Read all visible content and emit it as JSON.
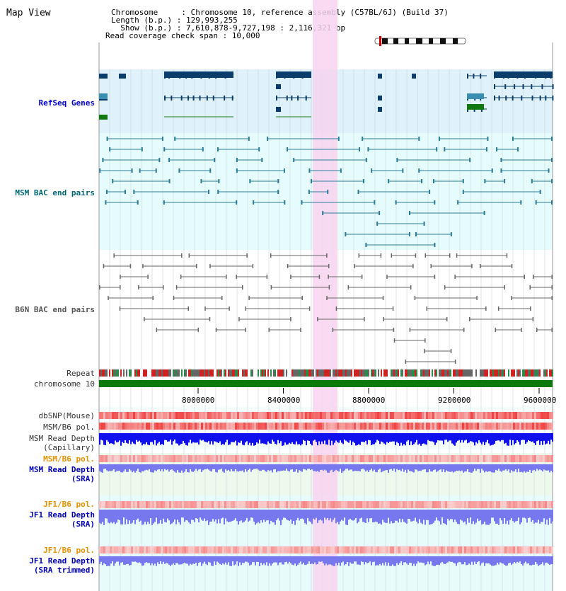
{
  "header": {
    "title": "Map View",
    "chromosome_line": "Chromosome     : Chromosome 10, reference assembly (C57BL/6J) (Build 37)",
    "length_line": "Length (b.p.) : 129,993,255",
    "show_line": "  Show (b.p.) : 7,610,878-9,727,198 : 2,116,321 bp",
    "coverage_line": "Read coverage check span : 10,000"
  },
  "tracks": {
    "refseq": "RefSeq Genes",
    "msm_bac": "MSM BAC end pairs",
    "b6n_bac": "B6N BAC end pairs",
    "repeat": "Repeat",
    "chromosome": "chromosome 10",
    "dbsnp": "dbSNP(Mouse)",
    "msm_b6_pol_1": "MSM/B6 pol.",
    "msm_depth_cap_1": "MSM Read Depth",
    "msm_depth_cap_2": "(Capillary)",
    "msm_b6_pol_2": "MSM/B6 pol.",
    "msm_depth_sra_1": "MSM Read Depth",
    "msm_depth_sra_2": "(SRA)",
    "jf1_b6_pol_1": "JF1/B6 pol.",
    "jf1_depth_sra_1": "JF1 Read Depth",
    "jf1_depth_sra_2": "(SRA)",
    "jf1_b6_pol_2": "JF1/B6 pol.",
    "jf1_depth_trim_1": "JF1 Read Depth",
    "jf1_depth_trim_2": "(SRA trimmed)"
  },
  "axis": {
    "ticks": [
      "8000000",
      "8400000",
      "8800000",
      "9200000",
      "9600000"
    ]
  },
  "colors": {
    "refseq_bg": "#dff1fa",
    "msm_bg": "#e6fbfb",
    "sra_bg": "#eef9ee",
    "highlight": "#f7d4f0",
    "gene": "#0a3d6b",
    "msm_pair": "#2a7d9a",
    "b6n_pair": "#666666",
    "chromosome_bar": "#0b7a0b",
    "snp": "#ee5555",
    "depth_cap": "#1111ee",
    "depth_sra": "#7777ee"
  }
}
